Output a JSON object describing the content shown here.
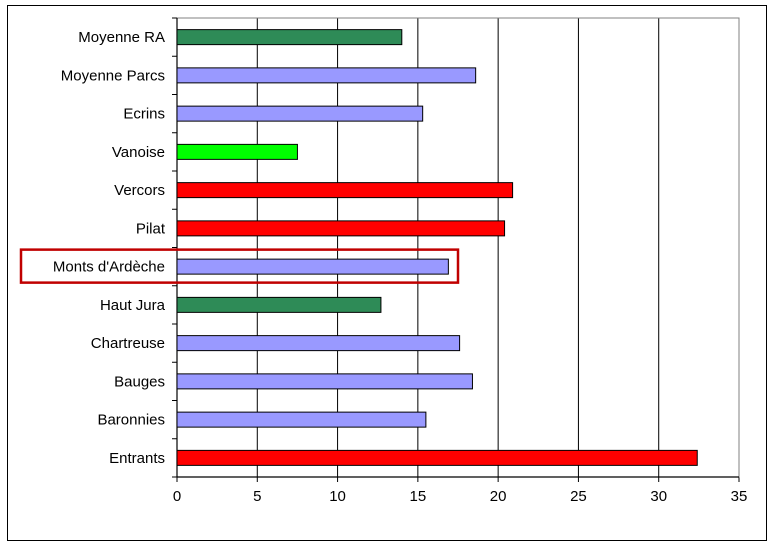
{
  "chart_data": {
    "type": "bar",
    "orientation": "horizontal",
    "categories": [
      "Moyenne RA",
      "Moyenne Parcs",
      "Ecrins",
      "Vanoise",
      "Vercors",
      "Pilat",
      "Monts d'Ardèche",
      "Haut Jura",
      "Chartreuse",
      "Bauges",
      "Baronnies",
      "Entrants"
    ],
    "values": [
      14.0,
      18.6,
      15.3,
      7.5,
      20.9,
      20.4,
      16.9,
      12.7,
      17.6,
      18.4,
      15.5,
      32.4
    ],
    "colors": [
      "#2e8b57",
      "#9999ff",
      "#9999ff",
      "#00ff00",
      "#ff0000",
      "#ff0000",
      "#9999ff",
      "#2e8b57",
      "#9999ff",
      "#9999ff",
      "#9999ff",
      "#ff0000"
    ],
    "highlighted_category": "Monts d'Ardèche",
    "highlight_color": "#c00000",
    "xlim": [
      0,
      35
    ],
    "xticks": [
      "0",
      "5",
      "10",
      "15",
      "20",
      "25",
      "30",
      "35"
    ],
    "grid": "vertical",
    "title": "",
    "xlabel": "",
    "ylabel": ""
  }
}
